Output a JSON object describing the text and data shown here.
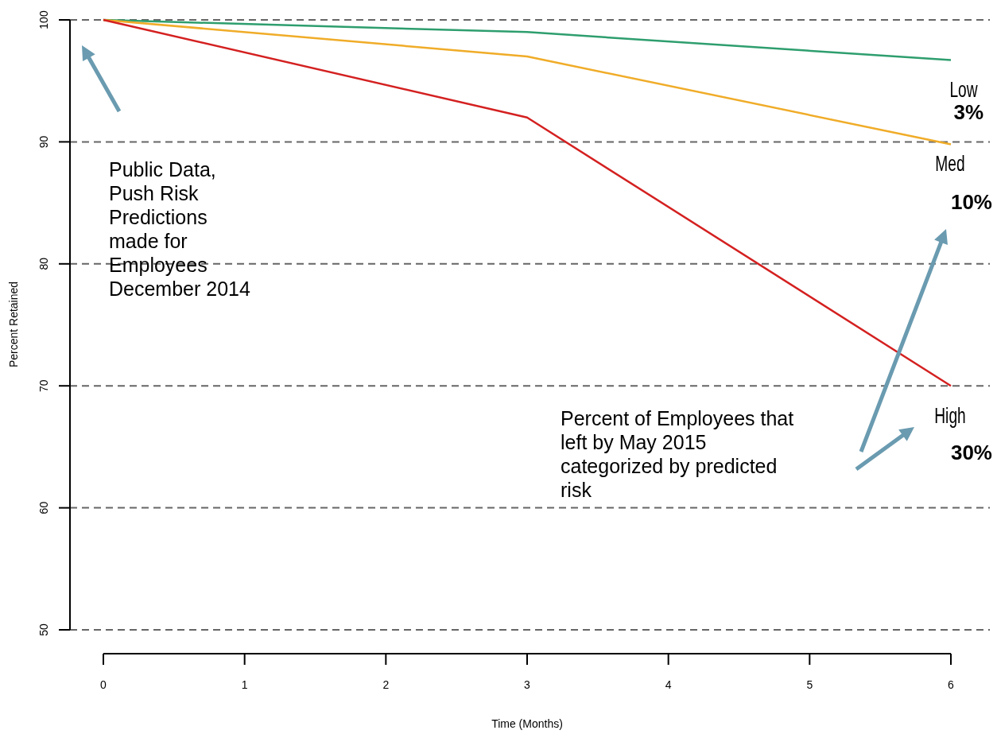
{
  "chart_data": {
    "type": "line",
    "xlabel": "Time (Months)",
    "ylabel": "Percent Retained",
    "x": [
      0,
      3,
      6
    ],
    "series": [
      {
        "name": "Low",
        "color": "#2e9e6e",
        "values": [
          100,
          99,
          96.7
        ]
      },
      {
        "name": "Med",
        "color": "#f0ac28",
        "values": [
          100,
          97,
          89.8
        ]
      },
      {
        "name": "High",
        "color": "#d42020",
        "values": [
          100,
          92,
          70
        ]
      }
    ],
    "xlim": [
      0,
      6
    ],
    "xticks": [
      0,
      1,
      2,
      3,
      4,
      5,
      6
    ],
    "ylim": [
      50,
      100
    ],
    "yticks": [
      50,
      60,
      70,
      80,
      90,
      100
    ],
    "grid": "y",
    "line_style": "solid",
    "marker": "none",
    "annotations": [
      "Public Data, Push Risk Predictions made for Employees December 2014",
      "Percent of Employees that left by May 2015 categorized by predicted risk",
      "3%",
      "10%",
      "30%"
    ]
  }
}
